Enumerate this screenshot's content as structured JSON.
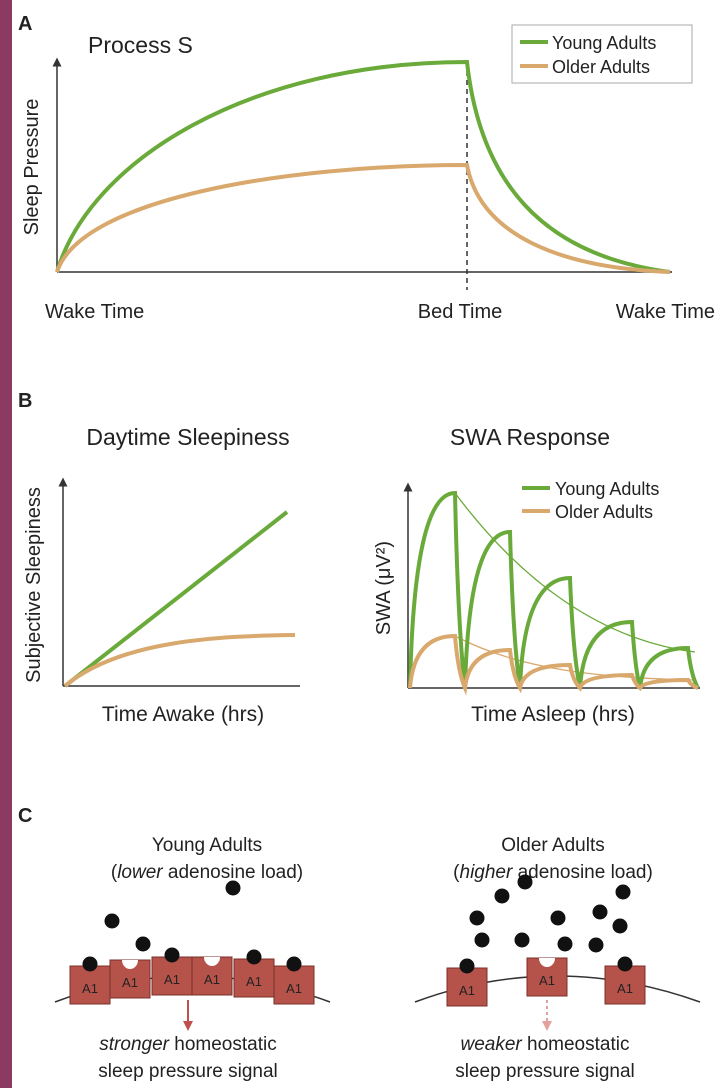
{
  "panel_a": {
    "label": "A",
    "title": "Process S",
    "y_axis_label": "Sleep Pressure",
    "x_labels": [
      "Wake Time",
      "Bed Time",
      "Wake Time"
    ],
    "legend": [
      "Young Adults",
      "Older Adults"
    ]
  },
  "panel_b": {
    "label": "B",
    "left": {
      "title": "Daytime Sleepiness",
      "y_axis_label": "Subjective Sleepiness",
      "x_axis_label": "Time Awake (hrs)"
    },
    "right": {
      "title": "SWA Response",
      "y_axis_label": "SWA (μV²)",
      "x_axis_label": "Time Asleep (hrs)",
      "legend": [
        "Young Adults",
        "Older Adults"
      ]
    }
  },
  "panel_c": {
    "label": "C",
    "young": {
      "title": "Young Adults",
      "note": [
        "(",
        "lower",
        " adenosine load)"
      ],
      "receptors": [
        "A1",
        "A1",
        "A1",
        "A1",
        "A1",
        "A1"
      ],
      "signal": [
        "stronger",
        " homeostatic"
      ],
      "signal_line2": "sleep pressure signal"
    },
    "older": {
      "title": "Older Adults",
      "note": [
        "(",
        "higher",
        " adenosine load)"
      ],
      "receptors": [
        "A1",
        "A1",
        "A1"
      ],
      "signal": [
        "weaker",
        " homeostatic"
      ],
      "signal_line2": "sleep pressure signal"
    }
  }
}
